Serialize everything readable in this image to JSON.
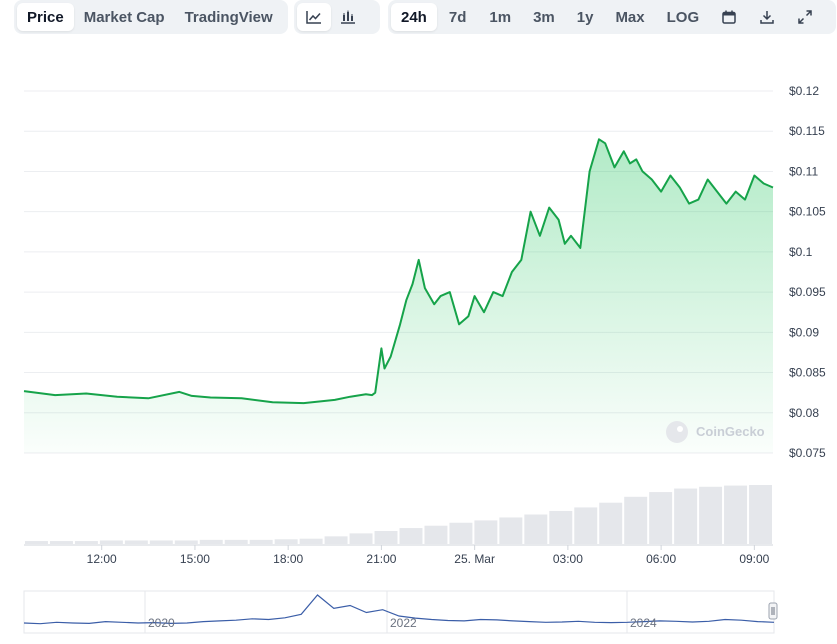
{
  "toolbar": {
    "view_tabs": [
      "Price",
      "Market Cap",
      "TradingView"
    ],
    "active_view": "Price",
    "chart_style_icons": [
      "line-chart-icon",
      "candlestick-icon"
    ],
    "ranges": [
      "24h",
      "7d",
      "1m",
      "3m",
      "1y",
      "Max",
      "LOG"
    ],
    "active_range": "24h",
    "action_icons": [
      "calendar-icon",
      "download-icon",
      "expand-icon"
    ]
  },
  "watermark": "CoinGecko",
  "colors": {
    "line": "#16a34a",
    "fill": "#22c55e",
    "volume": "#e5e7eb",
    "navigator": "#3b5ea8"
  },
  "chart_data": {
    "type": "line",
    "y_ticks": [
      "$0.12",
      "$0.115",
      "$0.11",
      "$0.105",
      "$0.1",
      "$0.095",
      "$0.09",
      "$0.085",
      "$0.08",
      "$0.075"
    ],
    "ylim": [
      0.075,
      0.12
    ],
    "x_ticks": [
      {
        "label": "12:00",
        "t": 3
      },
      {
        "label": "15:00",
        "t": 6
      },
      {
        "label": "18:00",
        "t": 9
      },
      {
        "label": "21:00",
        "t": 12
      },
      {
        "label": "25. Mar",
        "t": 15
      },
      {
        "label": "03:00",
        "t": 18
      },
      {
        "label": "06:00",
        "t": 21
      },
      {
        "label": "09:00",
        "t": 24
      }
    ],
    "xlim": [
      0.5,
      24.6
    ],
    "grid": true,
    "series": [
      {
        "t": [
          0.5,
          1.5,
          2.5,
          3.5,
          4.5,
          5.5,
          5.9,
          6.5,
          7.5,
          8.5,
          9.5,
          10.5,
          11.0,
          11.5,
          11.7,
          11.8,
          12.0,
          12.1,
          12.3,
          12.6,
          12.8,
          13.0,
          13.2,
          13.4,
          13.7,
          13.9,
          14.2,
          14.5,
          14.8,
          15.0,
          15.3,
          15.6,
          15.9,
          16.2,
          16.5,
          16.8,
          17.1,
          17.4,
          17.7,
          17.9,
          18.1,
          18.4,
          18.7,
          19.0,
          19.2,
          19.5,
          19.8,
          20.0,
          20.2,
          20.4,
          20.7,
          21.0,
          21.3,
          21.6,
          21.9,
          22.2,
          22.5,
          22.8,
          23.1,
          23.4,
          23.7,
          24.0,
          24.3,
          24.6
        ],
        "values": [
          0.0827,
          0.0822,
          0.0824,
          0.082,
          0.0818,
          0.0826,
          0.0821,
          0.0819,
          0.0818,
          0.0813,
          0.0812,
          0.0816,
          0.082,
          0.0823,
          0.0822,
          0.0825,
          0.088,
          0.0855,
          0.087,
          0.091,
          0.094,
          0.096,
          0.099,
          0.0955,
          0.0935,
          0.0945,
          0.095,
          0.091,
          0.092,
          0.0945,
          0.0925,
          0.095,
          0.0945,
          0.0975,
          0.099,
          0.105,
          0.102,
          0.1055,
          0.104,
          0.101,
          0.102,
          0.1005,
          0.11,
          0.114,
          0.1135,
          0.1105,
          0.1125,
          0.111,
          0.1115,
          0.11,
          0.109,
          0.1075,
          0.1095,
          0.108,
          0.106,
          0.1065,
          0.109,
          0.1075,
          0.106,
          0.1075,
          0.1065,
          0.1095,
          0.1085,
          0.108
        ]
      }
    ],
    "volume": [
      0.05,
      0.05,
      0.05,
      0.06,
      0.06,
      0.06,
      0.06,
      0.07,
      0.07,
      0.07,
      0.08,
      0.09,
      0.13,
      0.18,
      0.22,
      0.27,
      0.31,
      0.36,
      0.4,
      0.45,
      0.5,
      0.56,
      0.62,
      0.7,
      0.8,
      0.88,
      0.94,
      0.97,
      0.99,
      1.0
    ],
    "navigator": {
      "labels": [
        "2020",
        "2022",
        "2024"
      ],
      "values": [
        0.2,
        0.18,
        0.22,
        0.2,
        0.19,
        0.24,
        0.22,
        0.2,
        0.21,
        0.19,
        0.2,
        0.24,
        0.26,
        0.28,
        0.32,
        0.3,
        0.35,
        0.45,
        1.0,
        0.62,
        0.7,
        0.5,
        0.58,
        0.4,
        0.34,
        0.3,
        0.27,
        0.26,
        0.3,
        0.29,
        0.26,
        0.24,
        0.22,
        0.23,
        0.25,
        0.22,
        0.21,
        0.22,
        0.24,
        0.26,
        0.25,
        0.23,
        0.25,
        0.3,
        0.28,
        0.24,
        0.22
      ]
    }
  }
}
